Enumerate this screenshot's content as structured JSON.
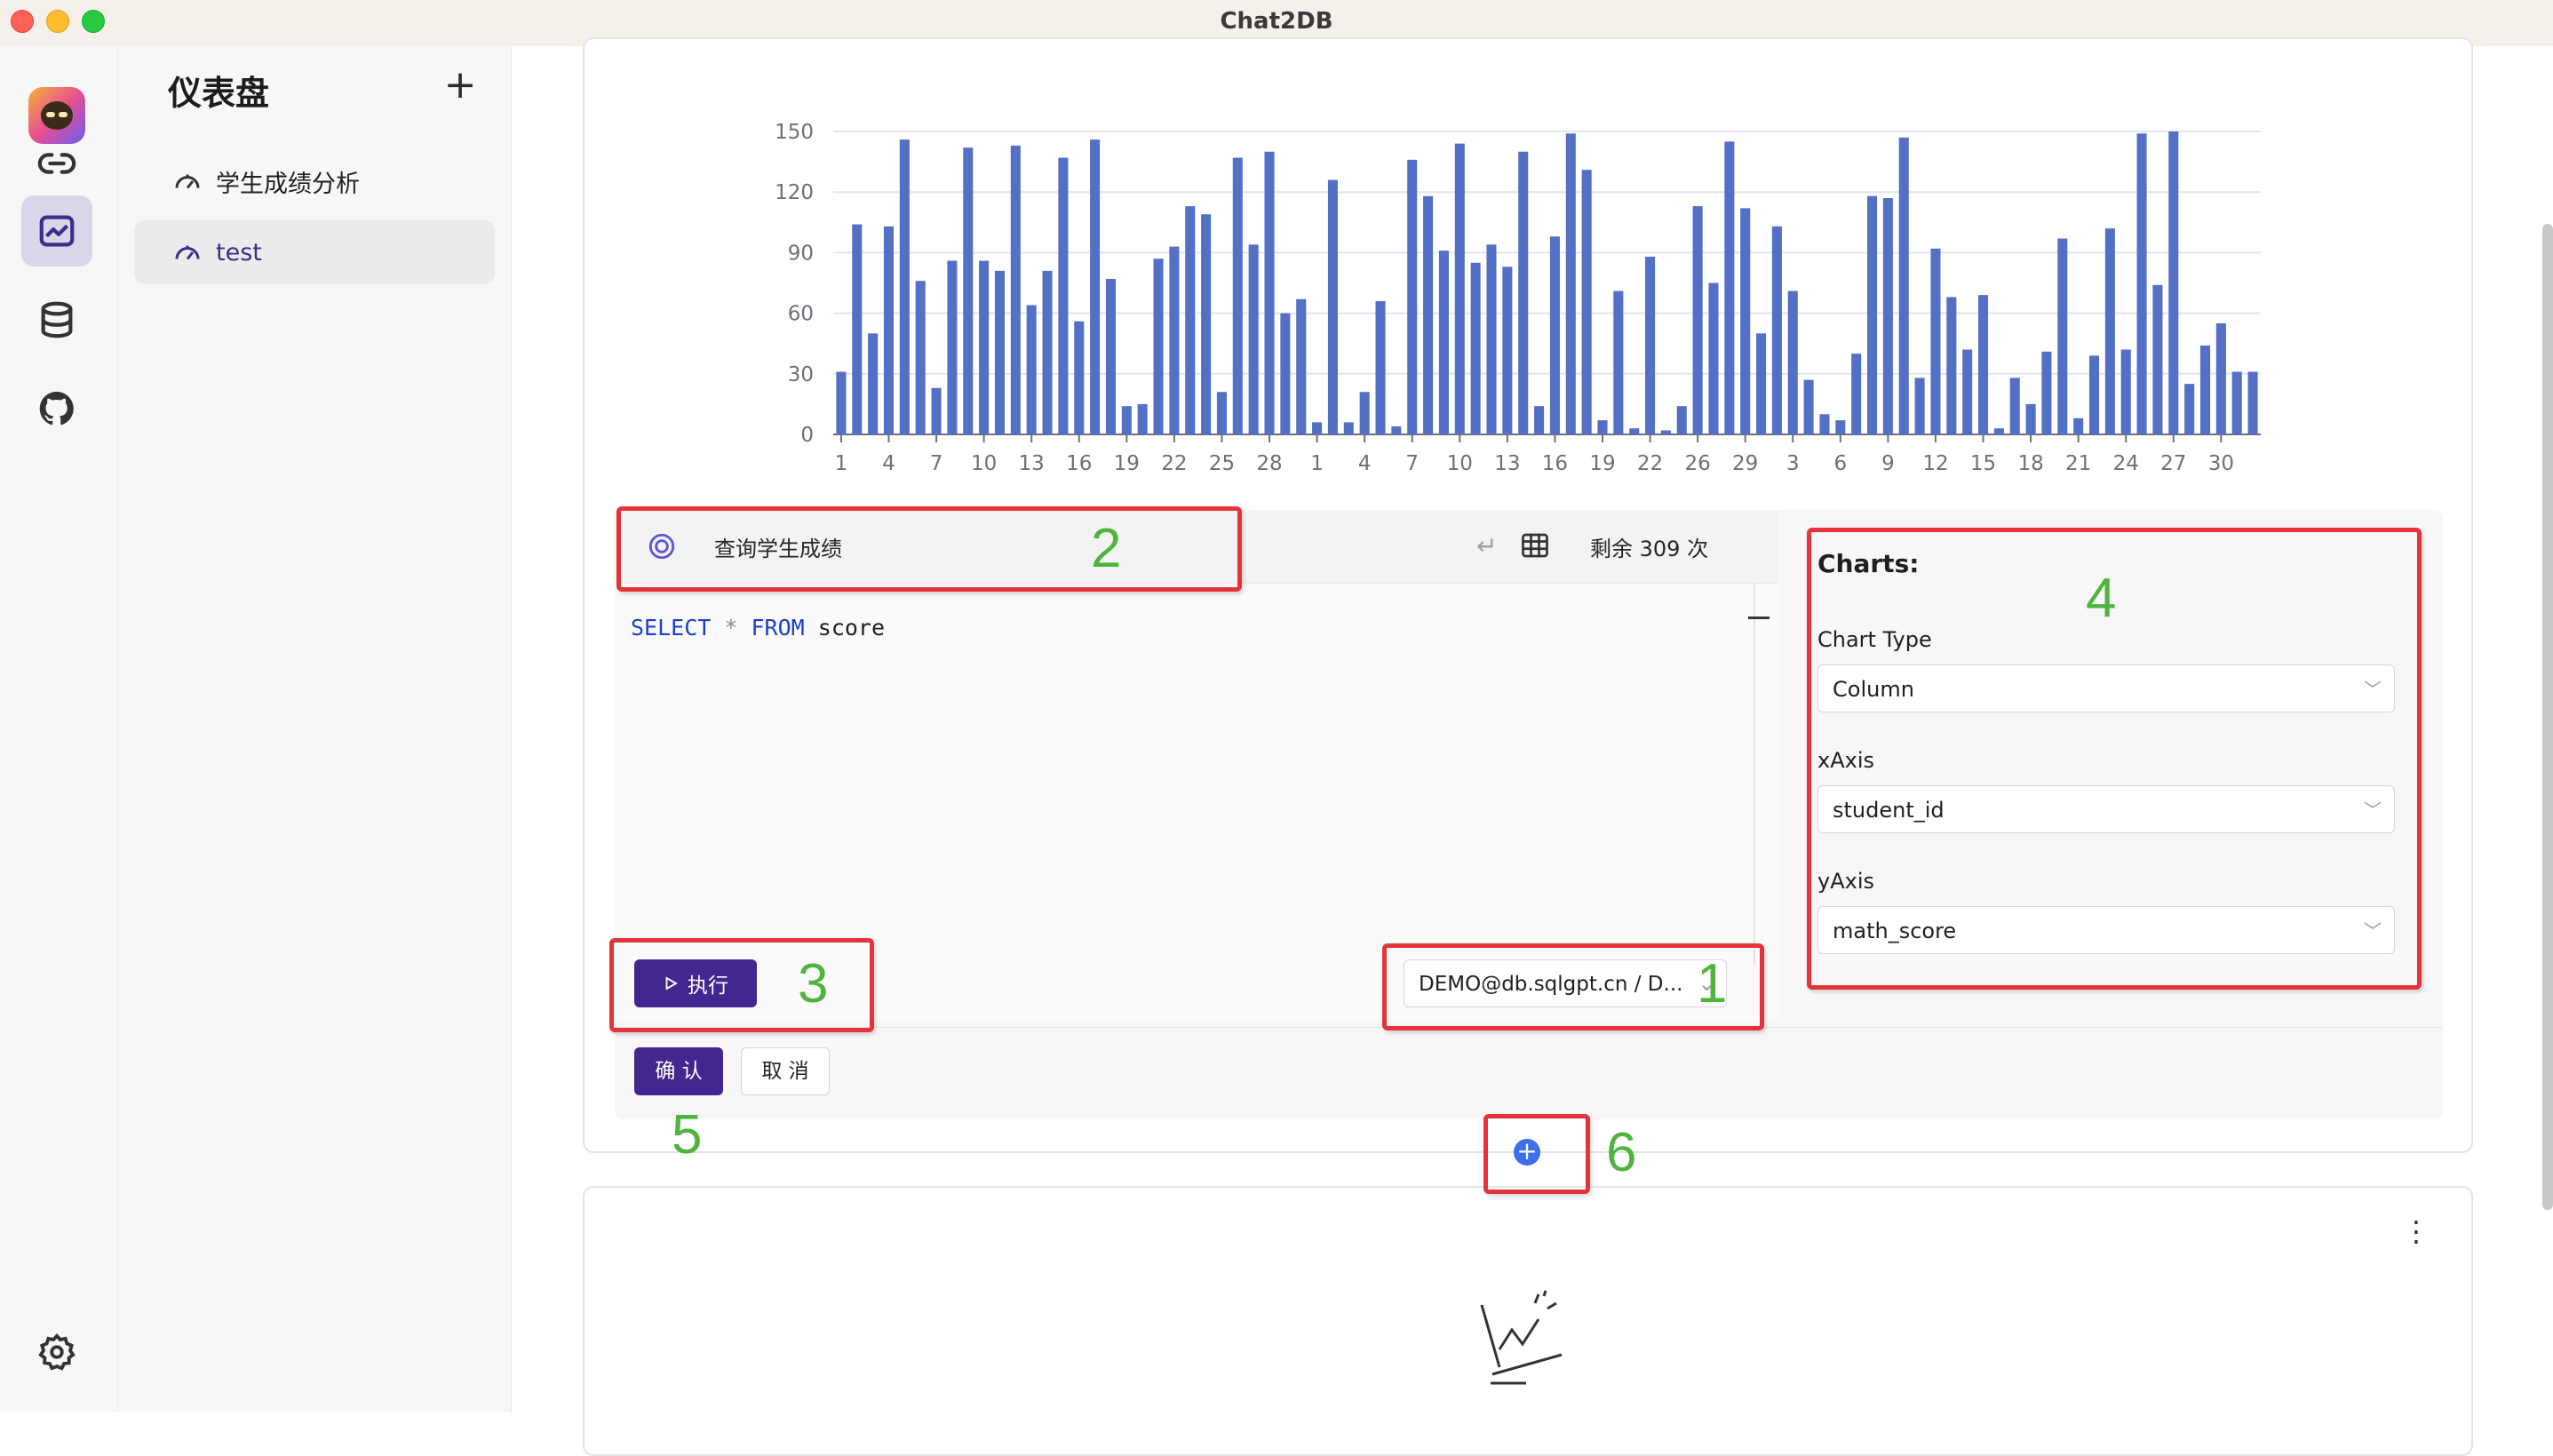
{
  "window": {
    "title": "Chat2DB"
  },
  "rail": {
    "icons": [
      "app-logo",
      "connection-icon",
      "dashboard-icon",
      "database-icon",
      "github-icon",
      "settings-icon"
    ]
  },
  "sidebar": {
    "title": "仪表盘",
    "add_label": "+",
    "items": [
      {
        "label": "学生成绩分析"
      },
      {
        "label": "test"
      }
    ]
  },
  "chart_data": {
    "type": "bar",
    "x_ticks": [
      "1",
      "4",
      "7",
      "10",
      "13",
      "16",
      "19",
      "22",
      "25",
      "28",
      "1",
      "4",
      "7",
      "10",
      "13",
      "16",
      "19",
      "22",
      "26",
      "29",
      "3",
      "6",
      "9",
      "12",
      "15",
      "18",
      "21",
      "24",
      "27",
      "30"
    ],
    "y_ticks": [
      0,
      30,
      60,
      90,
      120,
      150
    ],
    "ylim": [
      0,
      150
    ],
    "values": [
      31,
      104,
      50,
      103,
      146,
      76,
      23,
      86,
      142,
      86,
      81,
      143,
      64,
      81,
      137,
      56,
      146,
      77,
      14,
      15,
      87,
      93,
      113,
      109,
      21,
      137,
      94,
      140,
      60,
      67,
      6,
      126,
      6,
      21,
      66,
      4,
      136,
      118,
      91,
      144,
      85,
      94,
      83,
      140,
      14,
      98,
      149,
      131,
      7,
      71,
      3,
      88,
      2,
      14,
      113,
      75,
      145,
      112,
      50,
      103,
      71,
      27,
      10,
      7,
      40,
      118,
      117,
      147,
      28,
      92,
      68,
      42,
      69,
      3,
      28,
      15,
      41,
      97,
      8,
      39,
      102,
      42,
      149,
      74,
      150,
      25,
      44,
      55,
      31,
      31
    ]
  },
  "editor": {
    "prompt": "查询学生成绩",
    "enter_glyph": "↵",
    "remaining": "剩余 309 次",
    "code": {
      "kw1": "SELECT",
      "op": "*",
      "kw2": "FROM",
      "table": "score"
    },
    "execute_label": "执行",
    "data_source": "DEMO@db.sqlgpt.cn / D...",
    "confirm_label": "确 认",
    "cancel_label": "取 消"
  },
  "charts_config": {
    "title": "Charts:",
    "chart_type_label": "Chart Type",
    "chart_type_value": "Column",
    "xaxis_label": "xAxis",
    "xaxis_value": "student_id",
    "yaxis_label": "yAxis",
    "yaxis_value": "math_score"
  },
  "annotations": [
    "1",
    "2",
    "3",
    "4",
    "5",
    "6"
  ],
  "colors": {
    "bar": "#5470c6",
    "primary": "#43268f",
    "annotation_box": "#e4333a",
    "annotation_text": "#4fb33d"
  }
}
